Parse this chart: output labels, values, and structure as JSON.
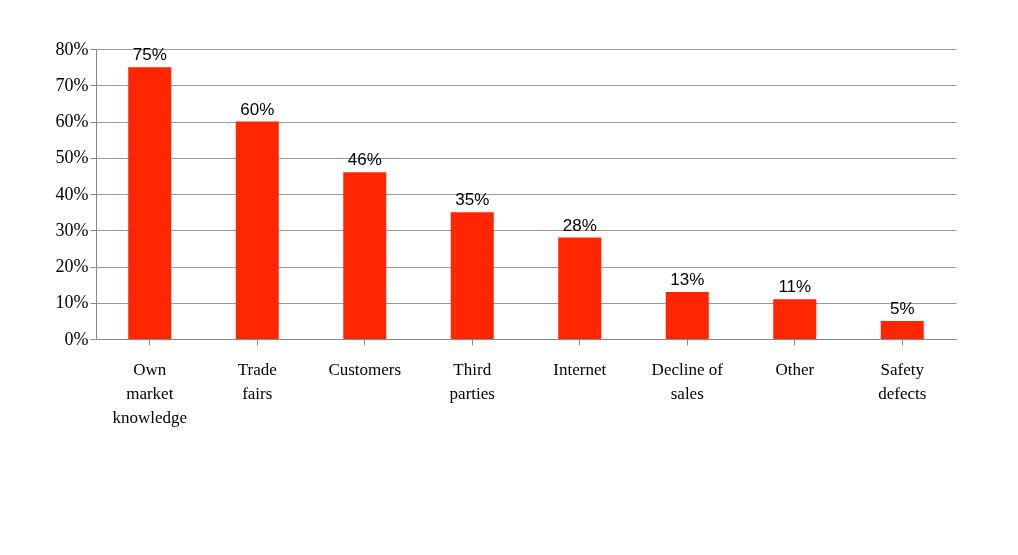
{
  "chart_data": {
    "type": "bar",
    "categories": [
      "Own\nmarket\nknowledge",
      "Trade\nfairs",
      "Customers",
      "Third\nparties",
      "Internet",
      "Decline of\nsales",
      "Other",
      "Safety\ndefects"
    ],
    "values": [
      75,
      60,
      46,
      35,
      28,
      13,
      11,
      5
    ],
    "value_labels": [
      "75%",
      "60%",
      "46%",
      "35%",
      "28%",
      "13%",
      "11%",
      "5%"
    ],
    "color": "#ff2600",
    "ylim": [
      0,
      80
    ],
    "yticks": [
      {
        "value": 0,
        "label": "0%"
      },
      {
        "value": 10,
        "label": "10%"
      },
      {
        "value": 20,
        "label": "20%"
      },
      {
        "value": 30,
        "label": "30%"
      },
      {
        "value": 40,
        "label": "40%"
      },
      {
        "value": 50,
        "label": "50%"
      },
      {
        "value": 60,
        "label": "60%"
      },
      {
        "value": 70,
        "label": "70%"
      },
      {
        "value": 80,
        "label": "80%"
      }
    ],
    "grid": "y"
  }
}
